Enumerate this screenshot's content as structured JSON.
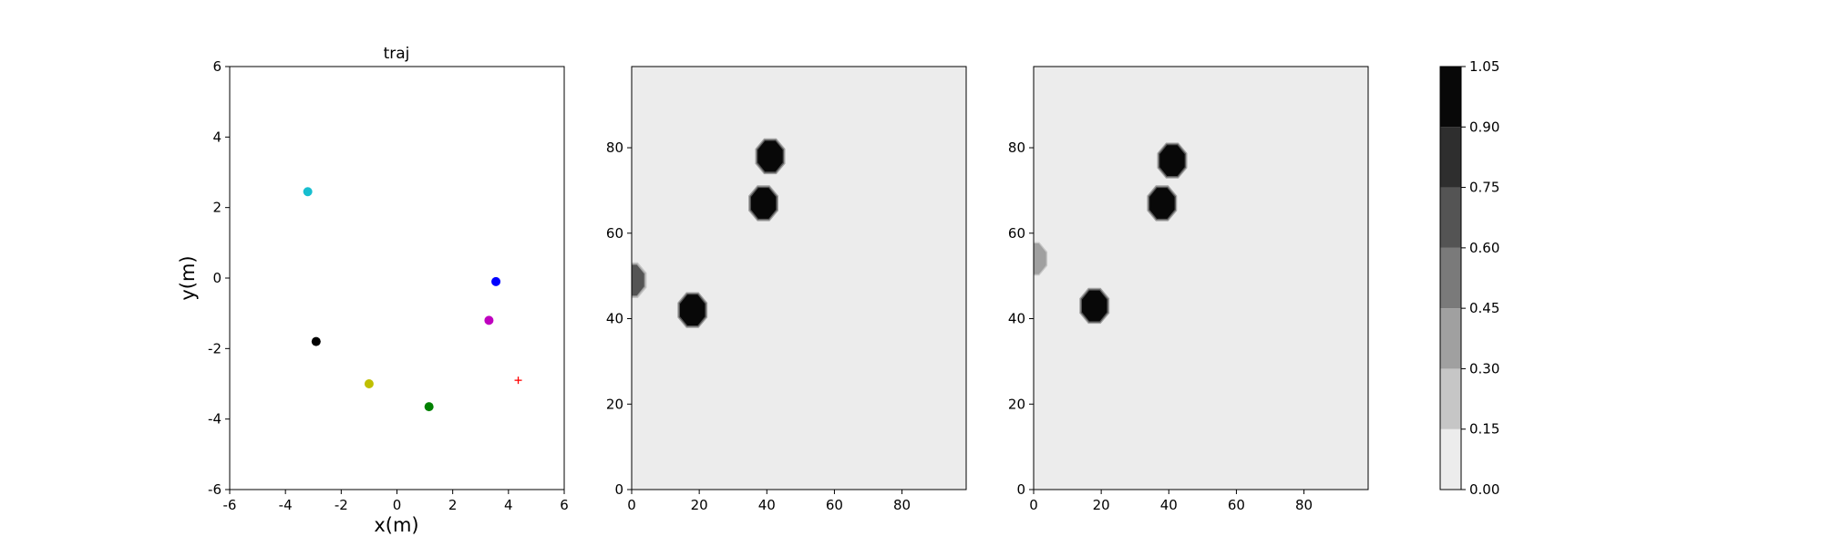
{
  "chart_data": [
    {
      "type": "scatter",
      "title": "traj",
      "xlabel": "x(m)",
      "ylabel": "y(m)",
      "xlim": [
        -6,
        6
      ],
      "ylim": [
        -6,
        6
      ],
      "xticks": [
        -6,
        -4,
        -2,
        0,
        2,
        4,
        6
      ],
      "yticks": [
        -6,
        -4,
        -2,
        0,
        2,
        4,
        6
      ],
      "grid": false,
      "points": [
        {
          "x": -3.2,
          "y": 2.45,
          "color": "#17becf",
          "marker": "circle"
        },
        {
          "x": 3.55,
          "y": -0.1,
          "color": "#0000ff",
          "marker": "circle"
        },
        {
          "x": 3.3,
          "y": -1.2,
          "color": "#bf00bf",
          "marker": "circle"
        },
        {
          "x": -2.9,
          "y": -1.8,
          "color": "#000000",
          "marker": "circle"
        },
        {
          "x": -1.0,
          "y": -3.0,
          "color": "#bfbf00",
          "marker": "circle"
        },
        {
          "x": 1.15,
          "y": -3.65,
          "color": "#008000",
          "marker": "circle"
        },
        {
          "x": 4.35,
          "y": -2.9,
          "color": "#ff0000",
          "marker": "plus"
        }
      ]
    },
    {
      "type": "heatmap",
      "xlim": [
        0,
        99
      ],
      "ylim": [
        0,
        99
      ],
      "xticks": [
        0,
        20,
        40,
        60,
        80
      ],
      "yticks": [
        0,
        20,
        40,
        60,
        80
      ],
      "background_value": 0.05,
      "blobs": [
        {
          "x": 41,
          "y": 78,
          "value": 1.0
        },
        {
          "x": 39,
          "y": 67,
          "value": 1.0
        },
        {
          "x": 18,
          "y": 42,
          "value": 1.0
        },
        {
          "x": 0,
          "y": 49,
          "value": 0.6
        }
      ]
    },
    {
      "type": "heatmap",
      "xlim": [
        0,
        99
      ],
      "ylim": [
        0,
        99
      ],
      "xticks": [
        0,
        20,
        40,
        60,
        80
      ],
      "yticks": [
        0,
        20,
        40,
        60,
        80
      ],
      "background_value": 0.05,
      "blobs": [
        {
          "x": 41,
          "y": 77,
          "value": 1.0
        },
        {
          "x": 38,
          "y": 67,
          "value": 1.0
        },
        {
          "x": 18,
          "y": 43,
          "value": 1.0
        },
        {
          "x": 0,
          "y": 54,
          "value": 0.3
        }
      ]
    }
  ],
  "colorbar": {
    "levels": [
      0.0,
      0.15,
      0.3,
      0.45,
      0.6,
      0.75,
      0.9,
      1.05
    ],
    "tick_labels": [
      "0.00",
      "0.15",
      "0.30",
      "0.45",
      "0.60",
      "0.75",
      "0.90",
      "1.05"
    ],
    "colors": [
      "#ececec",
      "#c6c6c6",
      "#a0a0a0",
      "#7a7a7a",
      "#545454",
      "#2e2e2e",
      "#080808"
    ]
  }
}
